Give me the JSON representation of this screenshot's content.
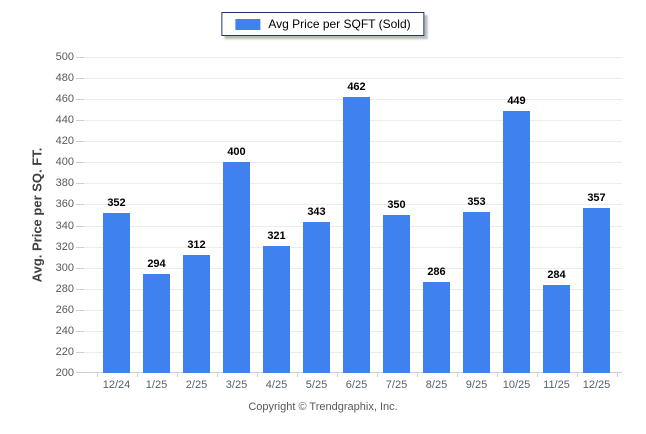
{
  "legend": {
    "label": "Avg Price per SQFT (Sold)"
  },
  "chart_data": {
    "type": "bar",
    "title": "",
    "categories": [
      "12/24",
      "1/25",
      "2/25",
      "3/25",
      "4/25",
      "5/25",
      "6/25",
      "7/25",
      "8/25",
      "9/25",
      "10/25",
      "11/25",
      "12/25"
    ],
    "values": [
      352,
      294,
      312,
      400,
      321,
      343,
      462,
      350,
      286,
      353,
      449,
      284,
      357
    ],
    "xlabel": "",
    "ylabel": "Avg. Price per SQ. FT.",
    "ylim": [
      200,
      500
    ],
    "ytick_step": 20,
    "grid": true,
    "legend": [
      "Avg Price per SQFT (Sold)"
    ],
    "legend_position": "top-center",
    "value_labels": true,
    "bar_color": "#4081F0"
  },
  "colors": {
    "bar": "#4081F0",
    "legend_border": "#1F3864",
    "gridline": "#ECECEC",
    "axis": "#CFCFCF",
    "y_tick_label": "#595959",
    "x_tick_label": "#57606C",
    "value_label": "#000000",
    "footer_text": "#595959",
    "y_axis_title": "#404040"
  },
  "footer": {
    "copyright": "Copyright © Trendgraphix, Inc."
  }
}
